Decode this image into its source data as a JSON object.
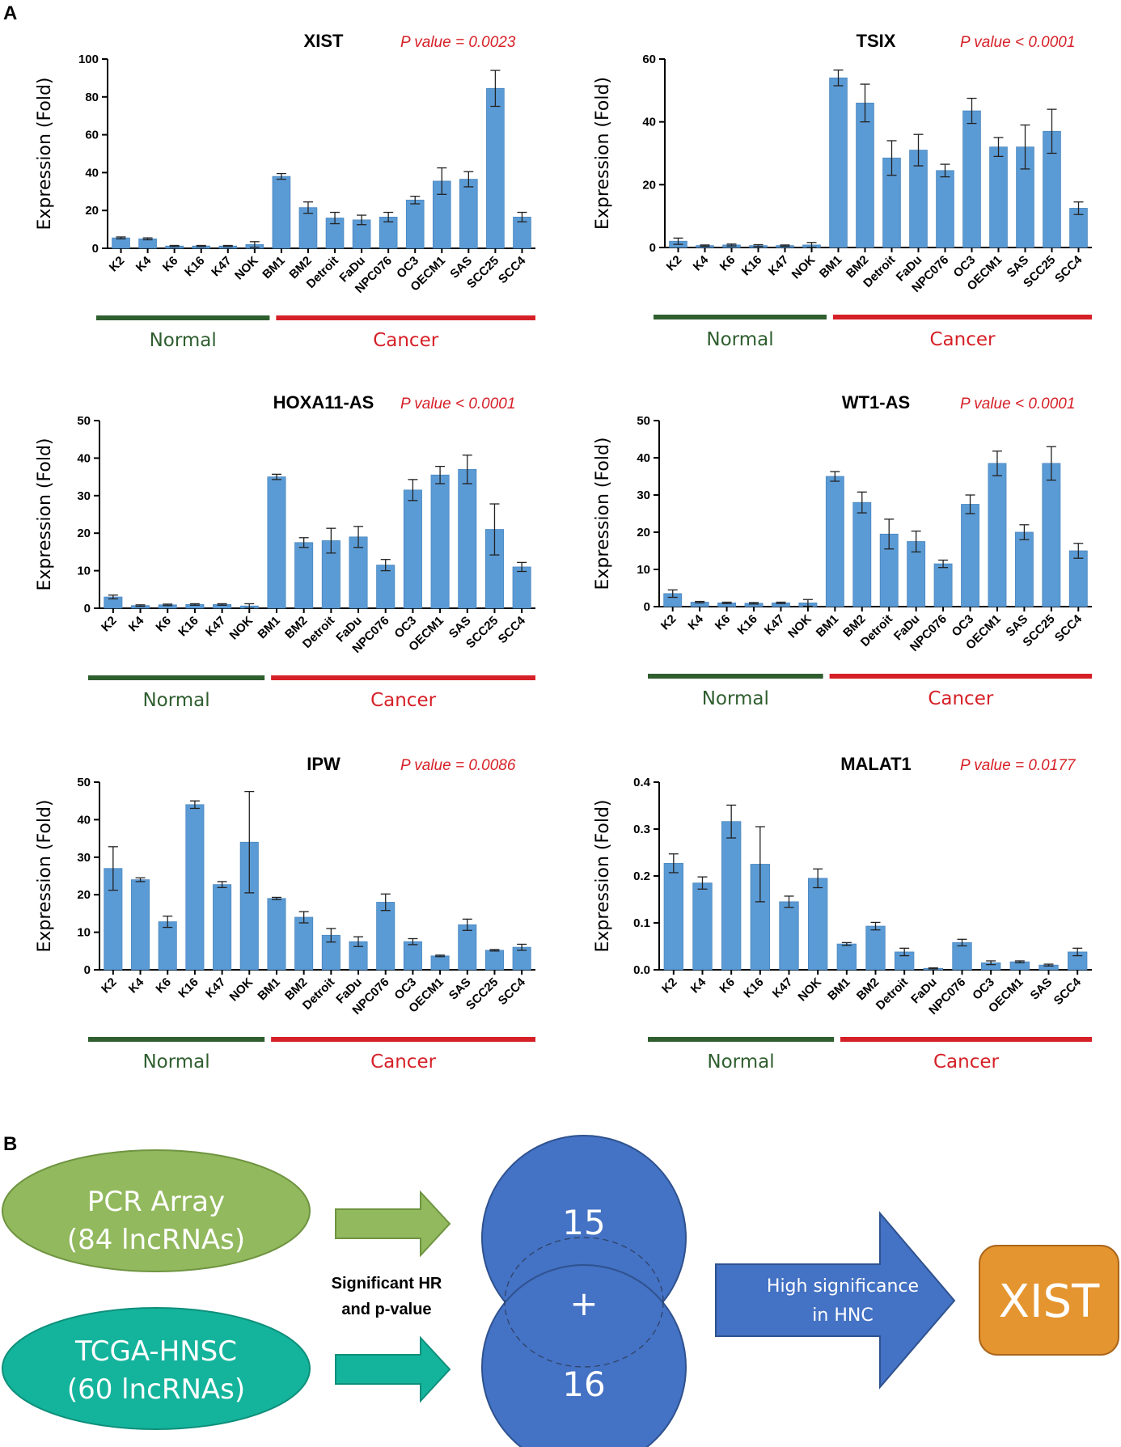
{
  "panel_a_label": "A",
  "panel_b_label": "B",
  "groups": {
    "normal": "Normal",
    "cancer": "Cancer",
    "normal_color": "#2f5e2f",
    "cancer_color": "#d62027"
  },
  "colors": {
    "bar": "#5b9bd5",
    "bar_edge": "#4a86bf",
    "arrow_green": "#92b95e",
    "arrow_teal": "#14b49c",
    "circle_blue": "#4472c4",
    "xist_box": "#e5952f"
  },
  "chart_data": [
    {
      "type": "bar",
      "title": "XIST",
      "pvalue": "P value = 0.0023",
      "ylabel": "Expression (Fold)",
      "ylim": [
        0,
        100
      ],
      "yticks": [
        "0",
        "20",
        "40",
        "60",
        "80",
        "100"
      ],
      "ytick_values": [
        0,
        20,
        40,
        60,
        80,
        100
      ],
      "categories": [
        "K2",
        "K4",
        "K6",
        "K16",
        "K47",
        "NOK",
        "BM1",
        "BM2",
        "Detroit",
        "FaDu",
        "NPC076",
        "OC3",
        "OECM1",
        "SAS",
        "SCC25",
        "SCC4"
      ],
      "values": [
        5.5,
        5,
        1.2,
        1.2,
        1.2,
        2,
        38,
        21.5,
        16,
        15,
        16.5,
        25.5,
        35.5,
        36.5,
        84.5,
        16.5
      ],
      "errors": [
        0.5,
        0.5,
        0.3,
        0.3,
        0.3,
        1.5,
        1.5,
        3,
        3,
        2.5,
        2.5,
        2,
        7,
        4,
        9.5,
        2.5
      ],
      "normal_count": 6
    },
    {
      "type": "bar",
      "title": "TSIX",
      "pvalue": "P value < 0.0001",
      "ylabel": "Expression (Fold)",
      "ylim": [
        0,
        60
      ],
      "yticks": [
        "0",
        "20",
        "40",
        "60"
      ],
      "ytick_values": [
        0,
        20,
        40,
        60
      ],
      "categories": [
        "K2",
        "K4",
        "K6",
        "K16",
        "K47",
        "NOK",
        "BM1",
        "BM2",
        "Detroit",
        "FaDu",
        "NPC076",
        "OC3",
        "OECM1",
        "SAS",
        "SCC25",
        "SCC4"
      ],
      "values": [
        2,
        0.6,
        0.8,
        0.6,
        0.6,
        0.8,
        54,
        46,
        28.5,
        31,
        24.5,
        43.5,
        32,
        32,
        37,
        12.5
      ],
      "errors": [
        1,
        0.2,
        0.3,
        0.3,
        0.2,
        0.8,
        2.5,
        6,
        5.5,
        5,
        2,
        4,
        3,
        7,
        7,
        2
      ],
      "normal_count": 6
    },
    {
      "type": "bar",
      "title": "HOXA11-AS",
      "pvalue": "P value < 0.0001",
      "ylabel": "Expression (Fold)",
      "ylim": [
        0,
        50
      ],
      "yticks": [
        "0",
        "10",
        "20",
        "30",
        "40",
        "50"
      ],
      "ytick_values": [
        0,
        10,
        20,
        30,
        40,
        50
      ],
      "categories": [
        "K2",
        "K4",
        "K6",
        "K16",
        "K47",
        "NOK",
        "BM1",
        "BM2",
        "Detroit",
        "FaDu",
        "NPC076",
        "OC3",
        "OECM1",
        "SAS",
        "SCC25",
        "SCC4"
      ],
      "values": [
        3,
        0.7,
        0.9,
        1,
        1,
        0.6,
        35,
        17.5,
        18,
        19,
        11.5,
        31.5,
        35.5,
        37,
        21,
        11
      ],
      "errors": [
        0.5,
        0.2,
        0.2,
        0.2,
        0.2,
        0.6,
        0.7,
        1.3,
        3.3,
        2.8,
        1.5,
        2.8,
        2.3,
        3.8,
        6.8,
        1.2
      ],
      "normal_count": 6
    },
    {
      "type": "bar",
      "title": "WT1-AS",
      "pvalue": "P value < 0.0001",
      "ylabel": "Expression (Fold)",
      "ylim": [
        0,
        50
      ],
      "yticks": [
        "0",
        "10",
        "20",
        "30",
        "40",
        "50"
      ],
      "ytick_values": [
        0,
        10,
        20,
        30,
        40,
        50
      ],
      "categories": [
        "K2",
        "K4",
        "K6",
        "K16",
        "K47",
        "NOK",
        "BM1",
        "BM2",
        "Detroit",
        "FaDu",
        "NPC076",
        "OC3",
        "OECM1",
        "SAS",
        "SCC25",
        "SCC4"
      ],
      "values": [
        3.5,
        1.2,
        1,
        0.9,
        1,
        1,
        35,
        28,
        19.5,
        17.5,
        11.5,
        27.5,
        38.5,
        20,
        38.5,
        15
      ],
      "errors": [
        1,
        0.2,
        0.2,
        0.2,
        0.2,
        0.9,
        1.3,
        2.8,
        4,
        2.8,
        1,
        2.5,
        3.3,
        2,
        4.5,
        2
      ],
      "normal_count": 6
    },
    {
      "type": "bar",
      "title": "IPW",
      "pvalue": "P value = 0.0086",
      "ylabel": "Expression (Fold)",
      "ylim": [
        0,
        50
      ],
      "yticks": [
        "0",
        "10",
        "20",
        "30",
        "40",
        "50"
      ],
      "ytick_values": [
        0,
        10,
        20,
        30,
        40,
        50
      ],
      "categories": [
        "K2",
        "K4",
        "K6",
        "K16",
        "K47",
        "NOK",
        "BM1",
        "BM2",
        "Detroit",
        "FaDu",
        "NPC076",
        "OC3",
        "OECM1",
        "SAS",
        "SCC25",
        "SCC4"
      ],
      "values": [
        27,
        24,
        12.8,
        44,
        22.7,
        34,
        19,
        14,
        9.2,
        7.5,
        18,
        7.5,
        3.7,
        12,
        5.2,
        6
      ],
      "errors": [
        5.8,
        0.5,
        1.5,
        1,
        0.8,
        13.5,
        0.3,
        1.5,
        1.8,
        1.3,
        2.2,
        0.8,
        0.2,
        1.5,
        0.2,
        0.8
      ],
      "normal_count": 6
    },
    {
      "type": "bar",
      "title": "MALAT1",
      "pvalue": "P value = 0.0177",
      "ylabel": "Expression (Fold)",
      "ylim": [
        0,
        0.4
      ],
      "yticks": [
        "0.0",
        "0.1",
        "0.2",
        "0.3",
        "0.4"
      ],
      "ytick_values": [
        0,
        0.1,
        0.2,
        0.3,
        0.4
      ],
      "categories": [
        "K2",
        "K4",
        "K6",
        "K16",
        "K47",
        "NOK",
        "BM1",
        "BM2",
        "Detroit",
        "FaDu",
        "NPC076",
        "OC3",
        "OECM1",
        "SAS",
        "SCC4"
      ],
      "values": [
        0.227,
        0.185,
        0.316,
        0.225,
        0.145,
        0.195,
        0.055,
        0.093,
        0.038,
        0.003,
        0.058,
        0.015,
        0.017,
        0.01,
        0.038
      ],
      "errors": [
        0.02,
        0.013,
        0.035,
        0.08,
        0.012,
        0.02,
        0.003,
        0.008,
        0.008,
        0.001,
        0.007,
        0.004,
        0.002,
        0.002,
        0.008
      ],
      "normal_count": 6
    }
  ],
  "flow": {
    "pcr_line1": "PCR Array",
    "pcr_line2": "(84 lncRNAs)",
    "tcga_line1": "TCGA-HNSC",
    "tcga_line2": "(60 lncRNAs)",
    "criteria_line1": "Significant HR",
    "criteria_line2": "and p-value",
    "top_count": "15",
    "plus": "+",
    "bottom_count": "16",
    "arrow_line1": "High significance",
    "arrow_line2": "in HNC",
    "result": "XIST"
  }
}
